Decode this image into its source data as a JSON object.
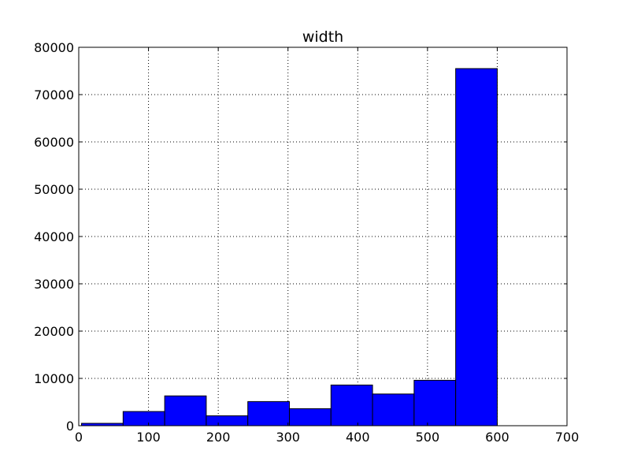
{
  "chart_data": {
    "type": "bar",
    "title": "width",
    "xlabel": "",
    "ylabel": "",
    "xlim": [
      0,
      700
    ],
    "ylim": [
      0,
      80000
    ],
    "xticks": [
      0,
      100,
      200,
      300,
      400,
      500,
      600,
      700
    ],
    "yticks": [
      0,
      10000,
      20000,
      30000,
      40000,
      50000,
      60000,
      70000,
      80000
    ],
    "grid": true,
    "bins": [
      {
        "x0": 4,
        "x1": 63.6,
        "value": 500
      },
      {
        "x0": 63.6,
        "x1": 123.2,
        "value": 3000
      },
      {
        "x0": 123.2,
        "x1": 182.8,
        "value": 6300
      },
      {
        "x0": 182.8,
        "x1": 242.4,
        "value": 2100
      },
      {
        "x0": 242.4,
        "x1": 302.0,
        "value": 5100
      },
      {
        "x0": 302.0,
        "x1": 361.6,
        "value": 3600
      },
      {
        "x0": 361.6,
        "x1": 421.2,
        "value": 8600
      },
      {
        "x0": 421.2,
        "x1": 480.8,
        "value": 6700
      },
      {
        "x0": 480.8,
        "x1": 540.4,
        "value": 9600
      },
      {
        "x0": 540.4,
        "x1": 600.0,
        "value": 75500
      }
    ],
    "bar_color": "#0000ff",
    "edge_color": "#000000"
  }
}
